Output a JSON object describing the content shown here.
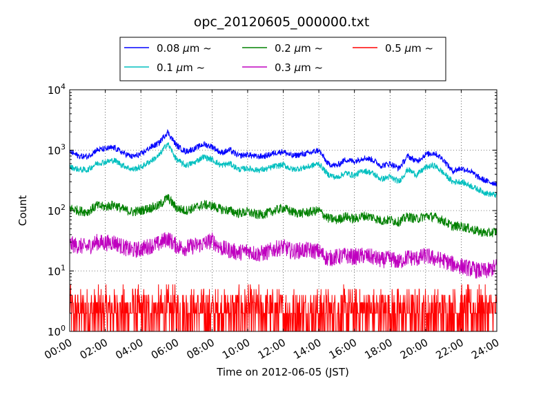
{
  "chart_data": {
    "type": "line",
    "title": "opc_20120605_000000.txt",
    "xlabel": "Time on 2012-06-05 (JST)",
    "ylabel": "Count",
    "yscale": "log",
    "ylim": [
      1,
      10000
    ],
    "xlim": [
      "00:00",
      "24:00"
    ],
    "grid": true,
    "legend_position": "top, outside plot",
    "x_ticks": [
      "00:00",
      "02:00",
      "04:00",
      "06:00",
      "08:00",
      "10:00",
      "12:00",
      "14:00",
      "16:00",
      "18:00",
      "20:00",
      "22:00",
      "24:00"
    ],
    "y_ticks": [
      {
        "value": 1,
        "base": "10",
        "exp": "0"
      },
      {
        "value": 10,
        "base": "10",
        "exp": "1"
      },
      {
        "value": 100,
        "base": "10",
        "exp": "2"
      },
      {
        "value": 1000,
        "base": "10",
        "exp": "3"
      },
      {
        "value": 10000,
        "base": "10",
        "exp": "4"
      }
    ],
    "x_hours": [
      0,
      0.5,
      1,
      1.5,
      2,
      2.5,
      3,
      3.5,
      4,
      4.5,
      5,
      5.5,
      6,
      6.5,
      7,
      7.5,
      8,
      8.5,
      9,
      9.5,
      10,
      10.5,
      11,
      11.5,
      12,
      12.5,
      13,
      13.5,
      14,
      14.5,
      15,
      15.5,
      16,
      16.5,
      17,
      17.5,
      18,
      18.5,
      19,
      19.5,
      20,
      20.5,
      21,
      21.5,
      22,
      22.5,
      23,
      23.5,
      24
    ],
    "series": [
      {
        "name": "0.08",
        "unit": "μm",
        "suffix": "~",
        "color": "#0000ff",
        "values": [
          950,
          800,
          780,
          1000,
          1050,
          1100,
          900,
          780,
          850,
          1100,
          1300,
          2000,
          1200,
          950,
          1050,
          1250,
          1150,
          900,
          1000,
          800,
          850,
          780,
          800,
          900,
          950,
          800,
          850,
          900,
          1000,
          600,
          550,
          700,
          650,
          750,
          700,
          550,
          600,
          500,
          800,
          650,
          850,
          900,
          700,
          450,
          500,
          450,
          350,
          300,
          280
        ]
      },
      {
        "name": "0.1",
        "unit": "μm",
        "suffix": "~",
        "color": "#00bfbf",
        "values": [
          530,
          480,
          470,
          600,
          640,
          680,
          560,
          480,
          520,
          650,
          800,
          1300,
          700,
          560,
          620,
          780,
          700,
          560,
          600,
          480,
          500,
          470,
          480,
          540,
          570,
          480,
          500,
          540,
          600,
          400,
          350,
          420,
          380,
          460,
          420,
          330,
          360,
          300,
          480,
          390,
          520,
          560,
          420,
          300,
          300,
          260,
          220,
          190,
          180
        ]
      },
      {
        "name": "0.2",
        "unit": "μm",
        "suffix": "~",
        "color": "#008000",
        "values": [
          110,
          100,
          95,
          120,
          115,
          125,
          105,
          95,
          100,
          110,
          120,
          165,
          110,
          100,
          110,
          125,
          120,
          105,
          100,
          90,
          95,
          85,
          88,
          100,
          110,
          95,
          90,
          95,
          100,
          75,
          70,
          80,
          72,
          82,
          78,
          68,
          70,
          65,
          80,
          72,
          82,
          78,
          68,
          55,
          55,
          50,
          45,
          42,
          45
        ]
      },
      {
        "name": "0.3",
        "unit": "μm",
        "suffix": "~",
        "color": "#bf00bf",
        "values": [
          28,
          26,
          25,
          30,
          29,
          30,
          25,
          22,
          23,
          26,
          28,
          35,
          26,
          24,
          26,
          28,
          32,
          24,
          22,
          20,
          22,
          19,
          20,
          23,
          25,
          21,
          22,
          22,
          21,
          16,
          17,
          18,
          17,
          18,
          17,
          15,
          16,
          14,
          17,
          16,
          18,
          16,
          15,
          13,
          12,
          11,
          10,
          10,
          12
        ]
      },
      {
        "name": "0.5",
        "unit": "μm",
        "suffix": "~",
        "color": "#ff0000",
        "min": 1,
        "max": 6,
        "values": [
          2,
          2,
          2,
          2,
          2,
          2,
          2,
          2,
          2,
          2,
          2,
          2,
          2,
          2,
          2,
          2,
          2,
          2,
          2,
          2,
          2,
          2,
          2,
          2,
          2,
          2,
          2,
          2,
          2,
          2,
          2,
          2,
          2,
          2,
          2,
          2,
          2,
          2,
          2,
          2,
          2,
          2,
          2,
          2,
          2,
          2,
          2,
          2,
          2
        ]
      }
    ]
  }
}
